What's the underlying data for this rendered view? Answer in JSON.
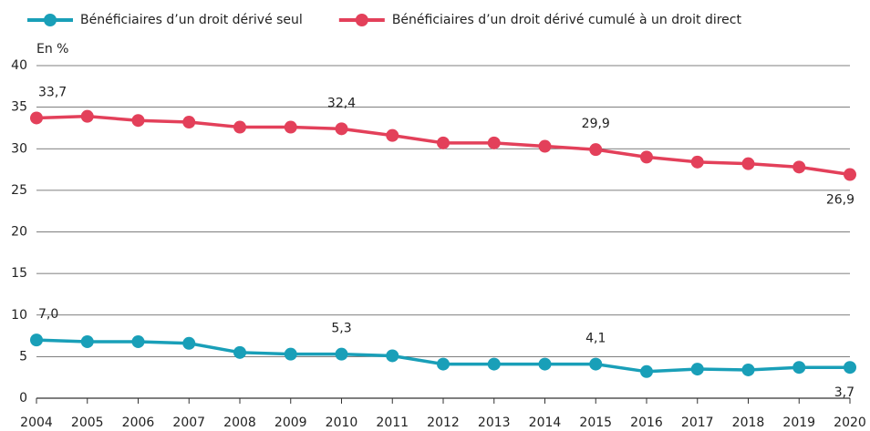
{
  "chart_data": {
    "type": "line",
    "y_axis_label": "En %",
    "x": [
      2004,
      2005,
      2006,
      2007,
      2008,
      2009,
      2010,
      2011,
      2012,
      2013,
      2014,
      2015,
      2016,
      2017,
      2018,
      2019,
      2020
    ],
    "xlim": [
      2004,
      2020
    ],
    "xticks": [
      2004,
      2005,
      2006,
      2007,
      2008,
      2009,
      2010,
      2011,
      2012,
      2013,
      2014,
      2015,
      2016,
      2017,
      2018,
      2019,
      2020
    ],
    "ylim": [
      0,
      40
    ],
    "yticks": [
      0,
      5,
      10,
      15,
      20,
      25,
      30,
      35,
      40
    ],
    "grid": true,
    "legend": "top",
    "series": [
      {
        "name": "Bénéficiaires d’un droit dérivé seul",
        "color": "#199fb8",
        "values": [
          7.0,
          6.8,
          6.8,
          6.6,
          5.5,
          5.3,
          5.3,
          5.1,
          4.1,
          4.1,
          4.1,
          4.1,
          3.2,
          3.5,
          3.4,
          3.7,
          3.7
        ],
        "value_labels": [
          "7,0",
          null,
          null,
          null,
          null,
          null,
          "5,3",
          null,
          null,
          null,
          null,
          "4,1",
          null,
          null,
          null,
          null,
          "3,7"
        ]
      },
      {
        "name": "Bénéficiaires d’un droit dérivé cumulé à un droit direct",
        "color": "#e3405a",
        "values": [
          33.7,
          33.9,
          33.4,
          33.2,
          32.6,
          32.6,
          32.4,
          31.6,
          30.7,
          30.7,
          30.3,
          29.9,
          29.0,
          28.4,
          28.2,
          27.8,
          26.9
        ],
        "value_labels": [
          "33,7",
          null,
          null,
          null,
          null,
          null,
          "32,4",
          null,
          null,
          null,
          null,
          "29,9",
          null,
          null,
          null,
          null,
          "26,9"
        ]
      }
    ]
  }
}
